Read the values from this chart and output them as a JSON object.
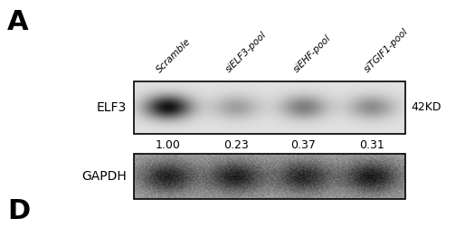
{
  "panel_label_A": "A",
  "panel_label_D": "D",
  "col_labels": [
    "Scramble",
    "siELF3-pool",
    "siEHF-pool",
    "siTGIF1-pool"
  ],
  "row_label_elf3": "ELF3",
  "row_label_gapdh": "GAPDH",
  "kd_label": "42KD",
  "values": [
    "1.00",
    "0.23",
    "0.37",
    "0.31"
  ],
  "bg_color": "#ffffff",
  "text_color": "#000000",
  "elf3_bg": "#e8e8e8",
  "gapdh_bg": "#aaaaaa",
  "elf3_band_intensities": [
    0.95,
    0.3,
    0.45,
    0.38
  ],
  "gapdh_band_intensities": [
    0.7,
    0.72,
    0.68,
    0.75
  ],
  "elf3_band_color_dark": "#111111",
  "gapdh_band_color_dark": "#222222"
}
